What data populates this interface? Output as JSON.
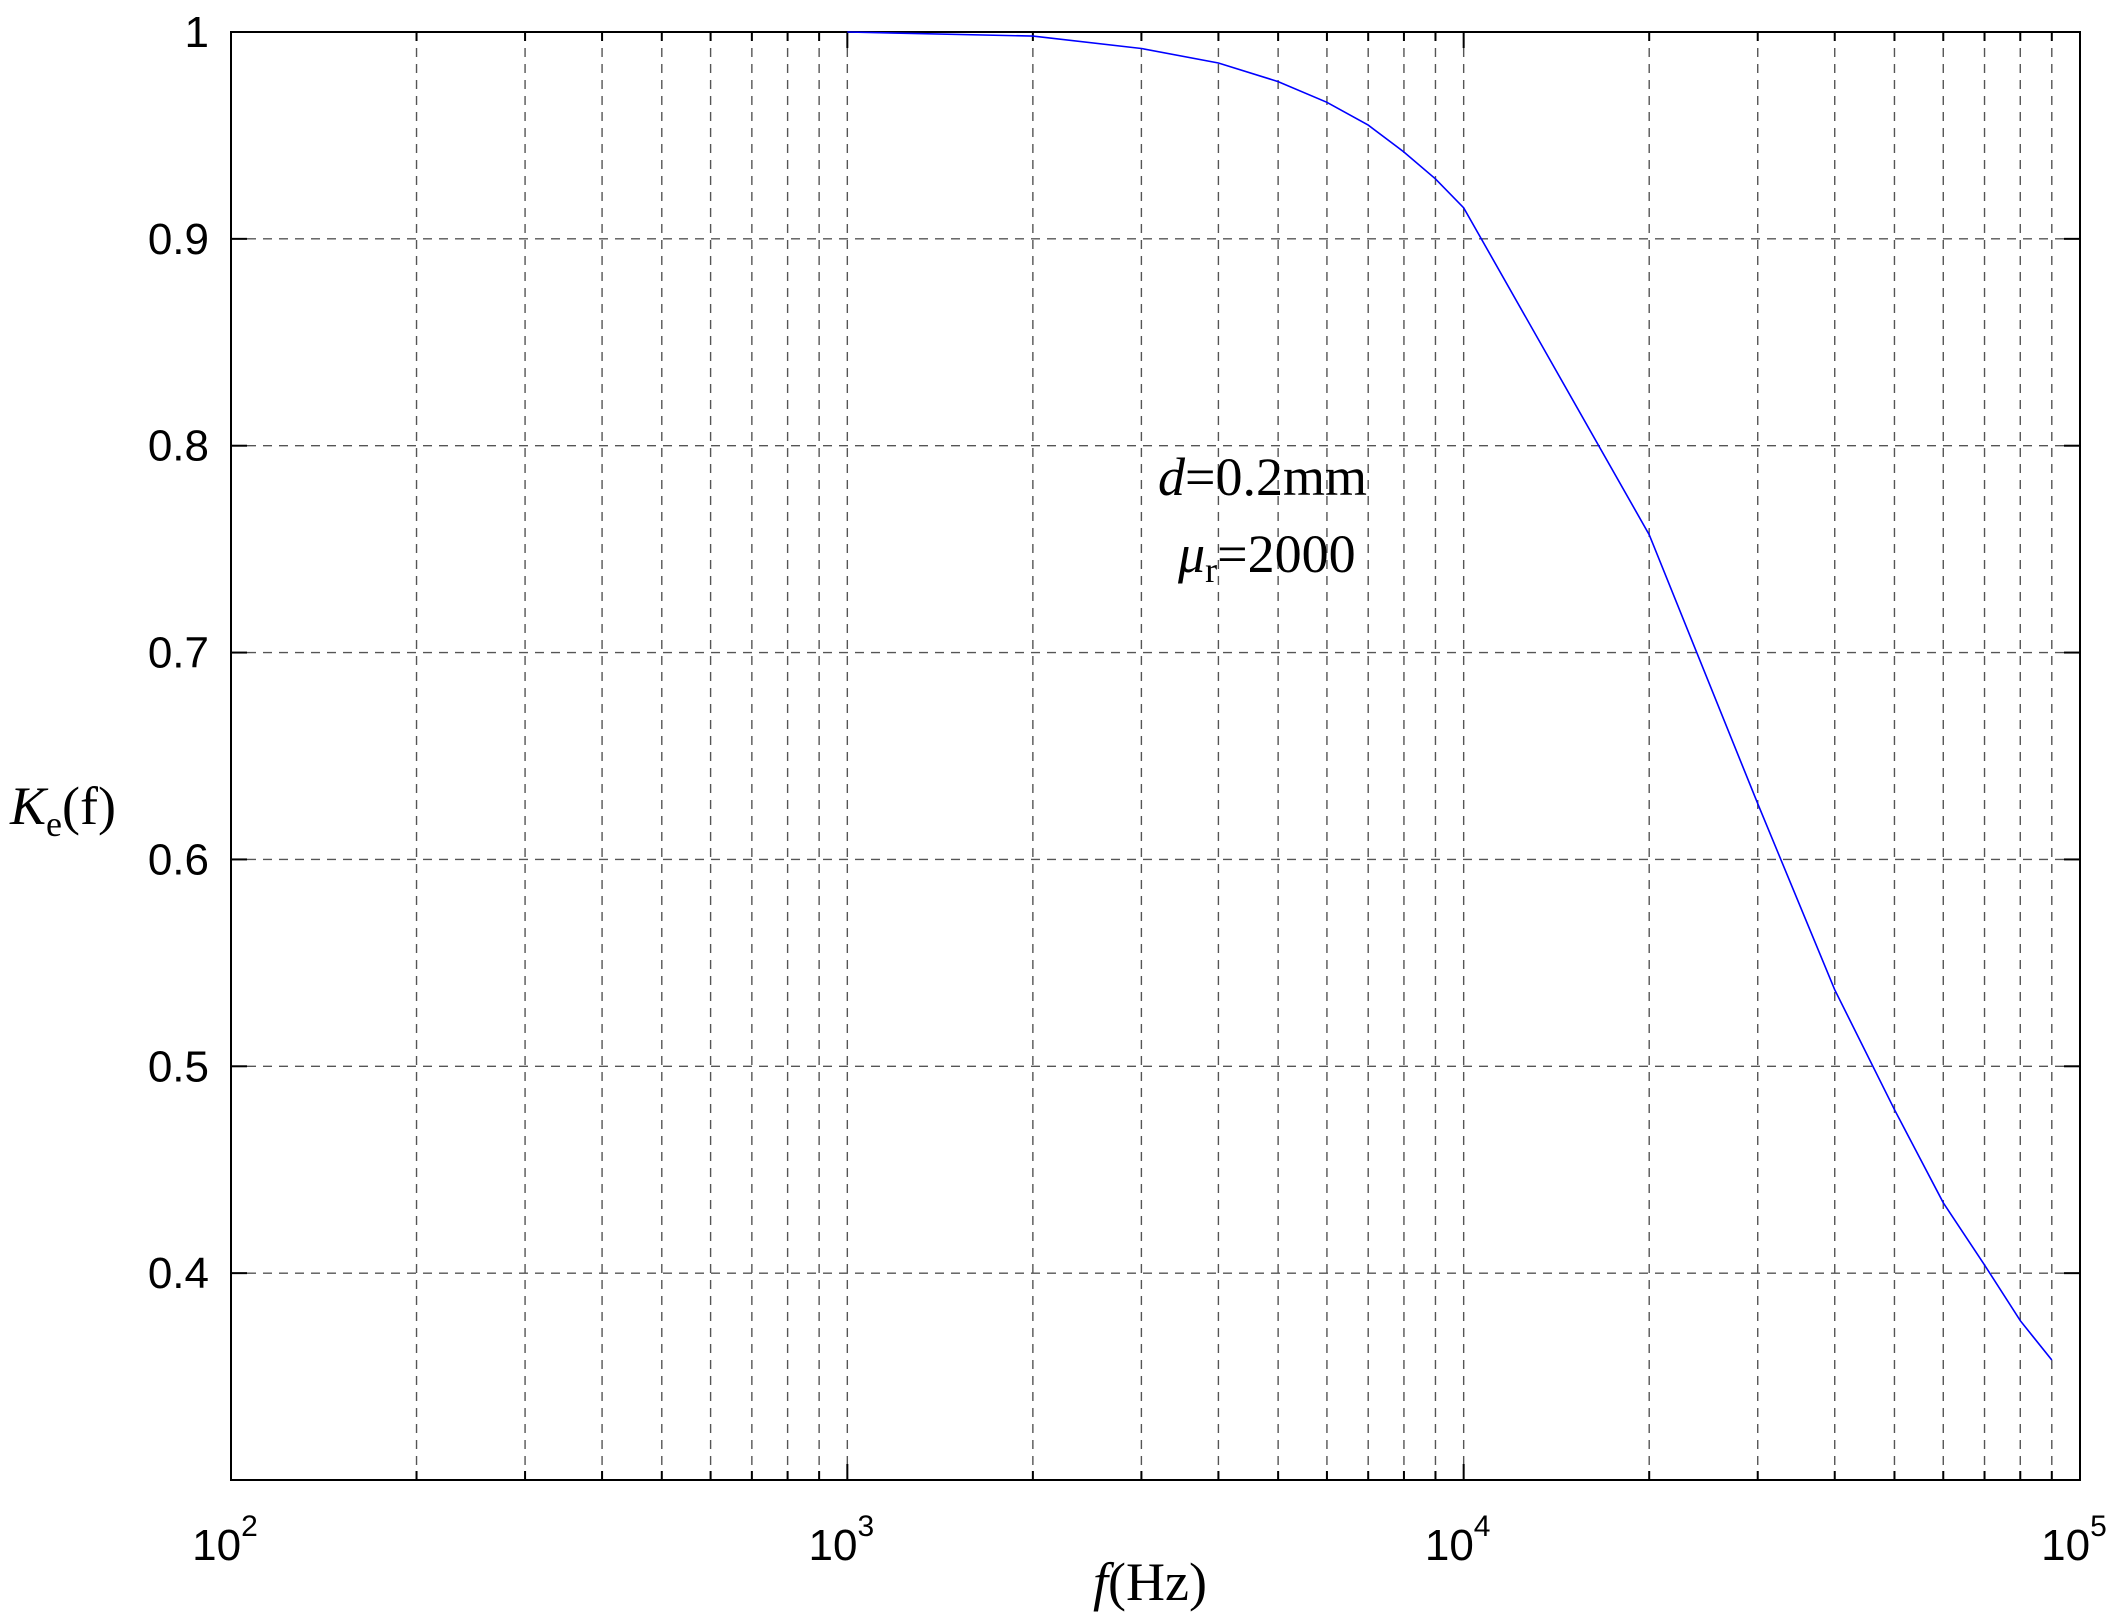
{
  "chart_data": {
    "type": "line",
    "title": "",
    "xlabel": {
      "main": "f",
      "rest": "(Hz)"
    },
    "ylabel": {
      "main": "K",
      "sub": "e",
      "rest": "(f)"
    },
    "xscale": "log",
    "xlim": [
      100,
      100000
    ],
    "ylim": [
      0.3,
      1.0
    ],
    "grid": true,
    "x_ticks": [
      {
        "value": 100,
        "base": "10",
        "exp": "2"
      },
      {
        "value": 1000,
        "base": "10",
        "exp": "3"
      },
      {
        "value": 10000,
        "base": "10",
        "exp": "4"
      },
      {
        "value": 100000,
        "base": "10",
        "exp": "5"
      }
    ],
    "y_ticks": [
      {
        "value": 0.4,
        "label": "0.4"
      },
      {
        "value": 0.5,
        "label": "0.5"
      },
      {
        "value": 0.6,
        "label": "0.6"
      },
      {
        "value": 0.7,
        "label": "0.7"
      },
      {
        "value": 0.8,
        "label": "0.8"
      },
      {
        "value": 0.9,
        "label": "0.9"
      },
      {
        "value": 1.0,
        "label": "1"
      }
    ],
    "series": [
      {
        "color": "#0000ff",
        "x": [
          1000,
          2000,
          3000,
          4000,
          5000,
          6000,
          7000,
          8000,
          9000,
          10000,
          20000,
          30000,
          40000,
          50000,
          60000,
          70000,
          80000,
          90000
        ],
        "y": [
          1.0,
          0.998,
          0.992,
          0.985,
          0.976,
          0.966,
          0.955,
          0.942,
          0.929,
          0.915,
          0.757,
          0.627,
          0.537,
          0.479,
          0.434,
          0.404,
          0.377,
          0.358
        ]
      }
    ],
    "annotations": [
      {
        "main": "d",
        "rest": "=0.2mm"
      },
      {
        "main": "μ",
        "sub": "r",
        "rest": "=2000"
      }
    ]
  }
}
